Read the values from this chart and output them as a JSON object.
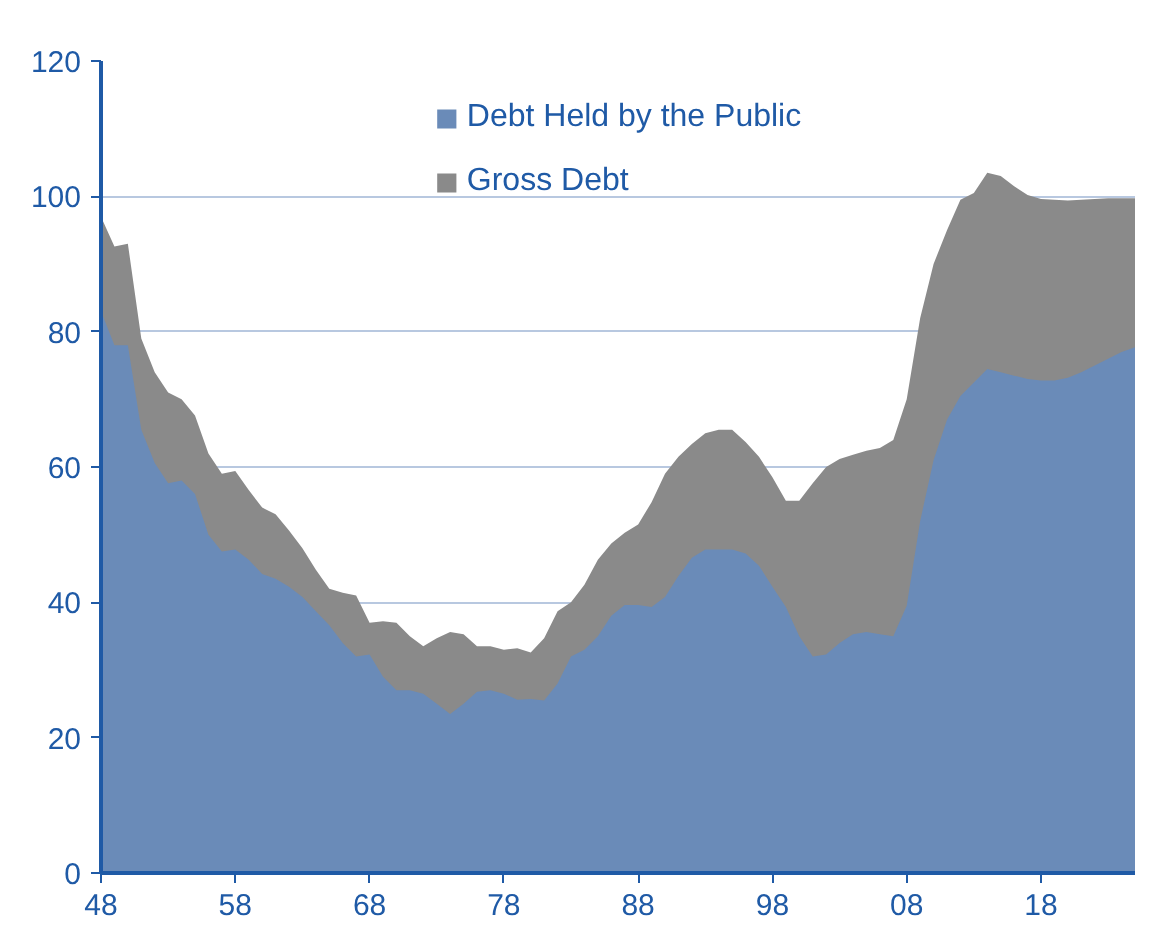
{
  "chart_data": {
    "type": "area",
    "x": [
      1948,
      1949,
      1950,
      1951,
      1952,
      1953,
      1954,
      1955,
      1956,
      1957,
      1958,
      1959,
      1960,
      1961,
      1962,
      1963,
      1964,
      1965,
      1966,
      1967,
      1968,
      1969,
      1970,
      1971,
      1972,
      1973,
      1974,
      1975,
      1976,
      1977,
      1978,
      1979,
      1980,
      1981,
      1982,
      1983,
      1984,
      1985,
      1986,
      1987,
      1988,
      1989,
      1990,
      1991,
      1992,
      1993,
      1994,
      1995,
      1996,
      1997,
      1998,
      1999,
      2000,
      2001,
      2002,
      2003,
      2004,
      2005,
      2006,
      2007,
      2008,
      2009,
      2010,
      2011,
      2012,
      2013,
      2014,
      2015,
      2016,
      2017,
      2018,
      2019,
      2020,
      2021,
      2022,
      2023,
      2024,
      2025
    ],
    "series": [
      {
        "name": "Gross Debt",
        "color": "#8a8a8a",
        "values": [
          97,
          92.6,
          93,
          79,
          74,
          71,
          70,
          67.6,
          62,
          59,
          59.4,
          56.6,
          54,
          53,
          50.6,
          48,
          44.8,
          42,
          41.4,
          41,
          37,
          37.2,
          37,
          35,
          33.5,
          34.7,
          35.6,
          35.3,
          33.5,
          33.5,
          33,
          33.2,
          32.6,
          34.7,
          38.7,
          40,
          42.6,
          46.3,
          48.7,
          50.3,
          51.5,
          54.8,
          59,
          61.5,
          63.4,
          65,
          65.5,
          65.5,
          63.7,
          61.5,
          58.5,
          55,
          55,
          57.6,
          60,
          61.2,
          61.8,
          62.4,
          62.8,
          64,
          70,
          82,
          90,
          95,
          99.5,
          100.5,
          103.5,
          103,
          101.5,
          100.2,
          99.6,
          99.5,
          99.4,
          99.5,
          99.6,
          99.7,
          99.7,
          99.7
        ]
      },
      {
        "name": "Debt Held by the Public",
        "color": "#6a8bb8",
        "values": [
          83,
          78,
          78,
          65.5,
          60.6,
          57.6,
          58,
          56,
          50,
          47.5,
          47.8,
          46.3,
          44.2,
          43.5,
          42.3,
          40.8,
          38.7,
          36.6,
          34,
          32,
          32.3,
          29,
          27,
          27,
          26.5,
          25,
          23.5,
          25,
          26.8,
          27,
          26.5,
          25.6,
          25.7,
          25.5,
          28,
          32,
          33,
          35,
          38,
          39.6,
          39.6,
          39.3,
          40.8,
          43.9,
          46.6,
          47.8,
          47.8,
          47.8,
          47.2,
          45.4,
          42.3,
          39.3,
          35,
          32,
          32.3,
          34,
          35.3,
          35.6,
          35.3,
          35,
          39.5,
          52,
          61,
          67,
          70.5,
          72.5,
          74.5,
          74,
          73.5,
          73,
          72.8,
          72.8,
          73.2,
          74,
          75,
          76,
          77,
          77.7
        ]
      }
    ],
    "xlim": [
      1948,
      2025
    ],
    "xticks": [
      {
        "value": 1948,
        "label": "48"
      },
      {
        "value": 1958,
        "label": "58"
      },
      {
        "value": 1968,
        "label": "68"
      },
      {
        "value": 1978,
        "label": "78"
      },
      {
        "value": 1988,
        "label": "88"
      },
      {
        "value": 1998,
        "label": "98"
      },
      {
        "value": 2008,
        "label": "08"
      },
      {
        "value": 2018,
        "label": "18"
      }
    ],
    "ylim": [
      0,
      120
    ],
    "yticks": [
      0,
      20,
      40,
      60,
      80,
      100,
      120
    ],
    "grid": "y",
    "legend": "top"
  }
}
